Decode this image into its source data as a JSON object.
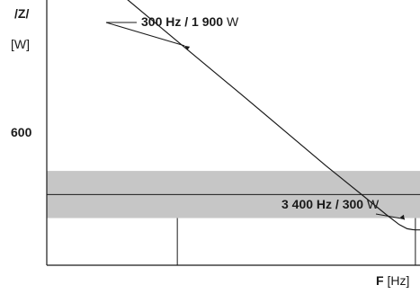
{
  "chart_data": {
    "type": "line",
    "title": "",
    "ylabel_symbol": "/Z/",
    "ylabel_unit": "[W]",
    "xlabel_symbol": "F",
    "xlabel_unit": "[Hz]",
    "x_scale": "reciprocal",
    "xlim": [
      200,
      4250
    ],
    "ylim": [
      0,
      2250
    ],
    "yticks": [
      {
        "value": 600,
        "label": "600"
      }
    ],
    "band": {
      "y_low": 400,
      "y_high": 800,
      "color": "#c6c6c6"
    },
    "vlines": [
      300,
      3400
    ],
    "series": [
      {
        "x": [
          200,
          250,
          300,
          400,
          500,
          700,
          1000,
          1500,
          2000,
          2500,
          3000,
          3400,
          4250
        ],
        "y": [
          2825,
          2270,
          1900,
          1440,
          1160,
          840,
          610,
          430,
          345,
          310,
          302,
          300,
          300
        ],
        "color": "#1a1a1a"
      }
    ],
    "annotations": [
      {
        "x": 300,
        "y": 1900,
        "value": "300 Hz / 1 900",
        "unit": "W"
      },
      {
        "x": 3400,
        "y": 300,
        "value": "3 400 Hz / 300",
        "unit": "W"
      }
    ]
  }
}
